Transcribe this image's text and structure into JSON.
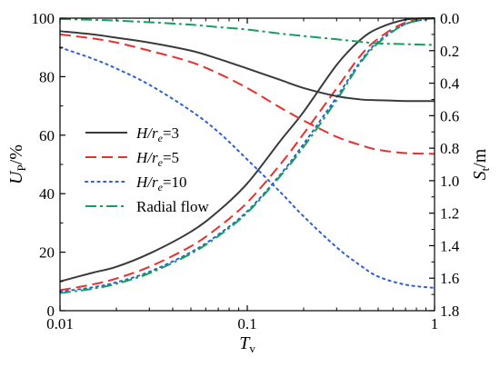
{
  "chart_data": {
    "type": "line",
    "x_axis": {
      "label_main": "T",
      "label_sub": "v",
      "scale": "log",
      "range": [
        0.01,
        1
      ],
      "ticks": [
        0.01,
        0.1,
        1
      ],
      "tick_labels": [
        "0.01",
        "0.1",
        "1"
      ]
    },
    "y_left": {
      "label_main": "U",
      "label_sub": "P",
      "label_suffix": "/%",
      "range": [
        0,
        100
      ],
      "ticks": [
        0,
        20,
        40,
        60,
        80,
        100
      ],
      "tick_labels": [
        "0",
        "20",
        "40",
        "60",
        "80",
        "100"
      ]
    },
    "y_right": {
      "label_main": "S",
      "label_sub": "t",
      "label_suffix": "/m",
      "range": [
        1.8,
        0.0
      ],
      "inverted": true,
      "ticks": [
        0.0,
        0.2,
        0.4,
        0.6,
        0.8,
        1.0,
        1.2,
        1.4,
        1.6,
        1.8
      ],
      "tick_labels": [
        "0.0",
        "0.2",
        "0.4",
        "0.6",
        "0.8",
        "1.0",
        "1.2",
        "1.4",
        "1.6",
        "1.8"
      ]
    },
    "legend": {
      "position": "center-left",
      "entries": [
        {
          "main": "H/r",
          "sub": "e",
          "suffix": "=3",
          "color": "#3a3a3a",
          "dash": "solid"
        },
        {
          "main": "H/r",
          "sub": "e",
          "suffix": "=5",
          "color": "#e8302f",
          "dash": "dash"
        },
        {
          "main": "H/r",
          "sub": "e",
          "suffix": "=10",
          "color": "#2d5fd6",
          "dash": "dot"
        },
        {
          "main": "",
          "sub": "",
          "suffix": "Radial flow",
          "color": "#14a05a",
          "dash": "dashdot"
        }
      ]
    },
    "x": [
      0.01,
      0.015,
      0.02,
      0.03,
      0.05,
      0.07,
      0.1,
      0.15,
      0.2,
      0.3,
      0.4,
      0.5,
      0.7,
      1.0
    ],
    "series": [
      {
        "legend_index": 0,
        "axis": "left",
        "quantity": "U_P",
        "values": [
          10,
          13,
          15,
          19.5,
          27,
          34,
          43.5,
          58,
          68,
          84,
          92.5,
          96.5,
          99.5,
          100
        ]
      },
      {
        "legend_index": 1,
        "axis": "left",
        "quantity": "U_P",
        "values": [
          7,
          9,
          11,
          15,
          22,
          28.5,
          37,
          50,
          60.5,
          76,
          87,
          93,
          98.5,
          100
        ]
      },
      {
        "legend_index": 2,
        "axis": "left",
        "quantity": "U_P",
        "values": [
          6.5,
          8,
          9.7,
          13.3,
          20,
          26,
          34,
          46.5,
          57,
          73,
          85,
          92,
          98,
          100
        ]
      },
      {
        "legend_index": 3,
        "axis": "left",
        "quantity": "U_P",
        "values": [
          6,
          7.5,
          9.2,
          12.8,
          19.5,
          25.5,
          33.5,
          46,
          56,
          72,
          84.5,
          91.5,
          98,
          100
        ]
      },
      {
        "legend_index": 0,
        "axis": "right",
        "quantity": "S_t",
        "values": [
          0.08,
          0.1,
          0.12,
          0.15,
          0.2,
          0.25,
          0.31,
          0.38,
          0.43,
          0.48,
          0.5,
          0.505,
          0.51,
          0.51
        ]
      },
      {
        "legend_index": 1,
        "axis": "right",
        "quantity": "S_t",
        "values": [
          0.1,
          0.125,
          0.15,
          0.2,
          0.27,
          0.34,
          0.43,
          0.55,
          0.63,
          0.73,
          0.78,
          0.81,
          0.83,
          0.835
        ]
      },
      {
        "legend_index": 2,
        "axis": "right",
        "quantity": "S_t",
        "values": [
          0.18,
          0.25,
          0.31,
          0.41,
          0.57,
          0.7,
          0.87,
          1.07,
          1.22,
          1.41,
          1.52,
          1.59,
          1.64,
          1.66
        ]
      },
      {
        "legend_index": 3,
        "axis": "right",
        "quantity": "S_t",
        "values": [
          0.005,
          0.01,
          0.015,
          0.025,
          0.04,
          0.055,
          0.07,
          0.095,
          0.11,
          0.13,
          0.145,
          0.155,
          0.16,
          0.165
        ]
      }
    ],
    "grid": false
  }
}
